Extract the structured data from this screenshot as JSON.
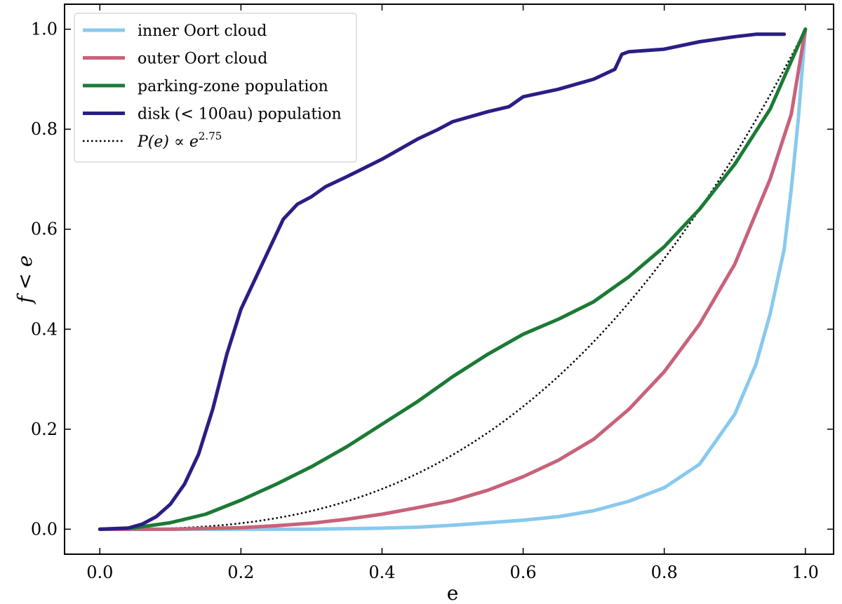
{
  "chart_data": {
    "type": "line",
    "xlabel": "e",
    "ylabel": "f < e",
    "xlim": [
      -0.05,
      1.04
    ],
    "ylim": [
      -0.05,
      1.05
    ],
    "xticks": [
      "0.0",
      "0.2",
      "0.4",
      "0.6",
      "0.8",
      "1.0"
    ],
    "yticks": [
      "0.0",
      "0.2",
      "0.4",
      "0.6",
      "0.8",
      "1.0"
    ],
    "grid": false,
    "legend_position": "top-left",
    "series": [
      {
        "name": "inner Oort cloud",
        "color": "#88c9ee",
        "style": "solid",
        "x": [
          0.0,
          0.1,
          0.2,
          0.3,
          0.4,
          0.45,
          0.5,
          0.55,
          0.6,
          0.65,
          0.7,
          0.75,
          0.8,
          0.85,
          0.9,
          0.93,
          0.95,
          0.97,
          0.98,
          0.99,
          1.0
        ],
        "y": [
          0.0,
          0.0,
          0.0,
          0.0,
          0.002,
          0.004,
          0.008,
          0.013,
          0.018,
          0.025,
          0.037,
          0.056,
          0.083,
          0.13,
          0.23,
          0.33,
          0.43,
          0.56,
          0.68,
          0.82,
          1.0
        ]
      },
      {
        "name": "outer Oort cloud",
        "color": "#c8627a",
        "style": "solid",
        "x": [
          0.0,
          0.1,
          0.2,
          0.25,
          0.3,
          0.35,
          0.4,
          0.45,
          0.5,
          0.55,
          0.6,
          0.65,
          0.7,
          0.75,
          0.8,
          0.85,
          0.9,
          0.95,
          0.98,
          1.0
        ],
        "y": [
          0.0,
          0.0,
          0.003,
          0.007,
          0.012,
          0.02,
          0.03,
          0.043,
          0.057,
          0.078,
          0.105,
          0.138,
          0.18,
          0.24,
          0.315,
          0.41,
          0.53,
          0.7,
          0.83,
          1.0
        ]
      },
      {
        "name": "parking-zone population",
        "color": "#1b7a35",
        "style": "solid",
        "x": [
          0.0,
          0.05,
          0.1,
          0.15,
          0.2,
          0.25,
          0.3,
          0.35,
          0.4,
          0.45,
          0.5,
          0.55,
          0.6,
          0.65,
          0.7,
          0.75,
          0.8,
          0.85,
          0.9,
          0.95,
          1.0
        ],
        "y": [
          0.0,
          0.003,
          0.013,
          0.03,
          0.058,
          0.09,
          0.125,
          0.165,
          0.21,
          0.255,
          0.305,
          0.35,
          0.39,
          0.42,
          0.455,
          0.505,
          0.565,
          0.64,
          0.73,
          0.84,
          1.0
        ]
      },
      {
        "name": "disk (< 100au) population",
        "color": "#2a1e85",
        "style": "solid",
        "x": [
          0.0,
          0.04,
          0.06,
          0.08,
          0.1,
          0.12,
          0.14,
          0.16,
          0.18,
          0.2,
          0.22,
          0.24,
          0.26,
          0.28,
          0.3,
          0.32,
          0.35,
          0.4,
          0.45,
          0.48,
          0.5,
          0.55,
          0.58,
          0.6,
          0.65,
          0.7,
          0.73,
          0.74,
          0.75,
          0.8,
          0.85,
          0.9,
          0.93,
          0.97
        ],
        "y": [
          0.0,
          0.002,
          0.01,
          0.025,
          0.05,
          0.09,
          0.15,
          0.24,
          0.35,
          0.44,
          0.5,
          0.56,
          0.62,
          0.65,
          0.665,
          0.685,
          0.705,
          0.74,
          0.78,
          0.8,
          0.815,
          0.835,
          0.845,
          0.865,
          0.88,
          0.9,
          0.92,
          0.95,
          0.955,
          0.96,
          0.975,
          0.985,
          0.99,
          0.99
        ]
      },
      {
        "name": "P(e) ∝ e^2.75",
        "color": "#000000",
        "style": "dotted",
        "formula": "e^2.75"
      }
    ]
  }
}
